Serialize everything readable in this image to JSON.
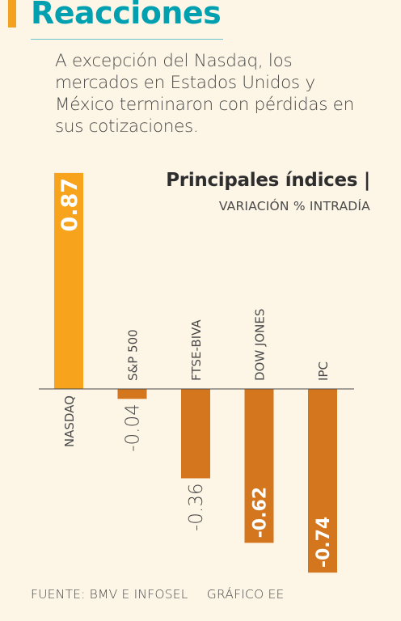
{
  "header": {
    "title": "Reacciones",
    "lead": "A excepción del Nasdaq, los mercados en Estados Unidos y México terminaron con pérdidas en sus cotizaciones."
  },
  "chart_data": {
    "type": "bar",
    "title": "Principales índices |",
    "subtitle": "VARIACIÓN % INTRADÍA",
    "categories": [
      "NASDAQ",
      "S&P 500",
      "FTSE-BIVA",
      "DOW JONES",
      "IPC"
    ],
    "values": [
      0.87,
      -0.04,
      -0.36,
      -0.62,
      -0.74
    ],
    "value_labels": [
      "0.87",
      "-0.04",
      "-0.36",
      "-0.62",
      "-0.74"
    ],
    "colors": {
      "positive": "#f7a31c",
      "negative": "#d4761e",
      "axis": "#4a4a4a"
    }
  },
  "footer": {
    "source": "FUENTE: BMV E INFOSEL",
    "credit": "GRÁFICO EE"
  }
}
